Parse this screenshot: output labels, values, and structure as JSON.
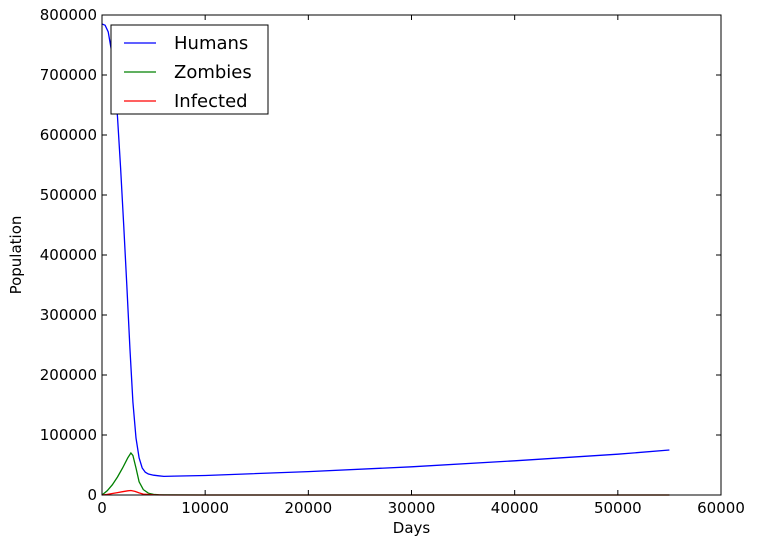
{
  "chart_data": {
    "type": "line",
    "title": "",
    "xlabel": "Days",
    "ylabel": "Population",
    "xlim": [
      0,
      60000
    ],
    "ylim": [
      0,
      800000
    ],
    "xticks": [
      0,
      10000,
      20000,
      30000,
      40000,
      50000,
      60000
    ],
    "yticks": [
      0,
      100000,
      200000,
      300000,
      400000,
      500000,
      600000,
      700000,
      800000
    ],
    "xtick_labels": [
      "0",
      "10000",
      "20000",
      "30000",
      "40000",
      "50000",
      "60000"
    ],
    "ytick_labels": [
      "0",
      "100000",
      "200000",
      "300000",
      "400000",
      "500000",
      "600000",
      "700000",
      "800000"
    ],
    "grid": false,
    "legend_position": "top-left",
    "series": [
      {
        "name": "Humans",
        "color": "#0000ff",
        "x": [
          0,
          300,
          600,
          900,
          1200,
          1500,
          1800,
          2100,
          2400,
          2700,
          3000,
          3300,
          3600,
          3900,
          4200,
          4500,
          5000,
          5500,
          6000,
          7000,
          10000,
          20000,
          30000,
          40000,
          50000,
          55000
        ],
        "y": [
          785000,
          783000,
          772000,
          742000,
          700000,
          630000,
          545000,
          450000,
          350000,
          245000,
          155000,
          95000,
          62000,
          45000,
          38000,
          35000,
          33000,
          32000,
          31000,
          31500,
          32500,
          39000,
          47000,
          57000,
          68000,
          75000
        ]
      },
      {
        "name": "Zombies",
        "color": "#008000",
        "x": [
          0,
          500,
          1000,
          1500,
          2000,
          2500,
          2800,
          3000,
          3300,
          3600,
          4000,
          4500,
          5000,
          5500,
          6000,
          10000,
          30000,
          55000
        ],
        "y": [
          0,
          7000,
          17000,
          30000,
          45000,
          62000,
          70000,
          66000,
          45000,
          22000,
          9000,
          3000,
          1000,
          300,
          100,
          0,
          0,
          0
        ]
      },
      {
        "name": "Infected",
        "color": "#ff0000",
        "x": [
          0,
          500,
          1000,
          1500,
          2000,
          2500,
          2800,
          3200,
          3600,
          4000,
          5000,
          6000,
          10000,
          30000,
          55000
        ],
        "y": [
          0,
          1000,
          2500,
          4000,
          5500,
          7000,
          7500,
          6000,
          3500,
          1500,
          300,
          50,
          0,
          0,
          0
        ]
      }
    ]
  }
}
